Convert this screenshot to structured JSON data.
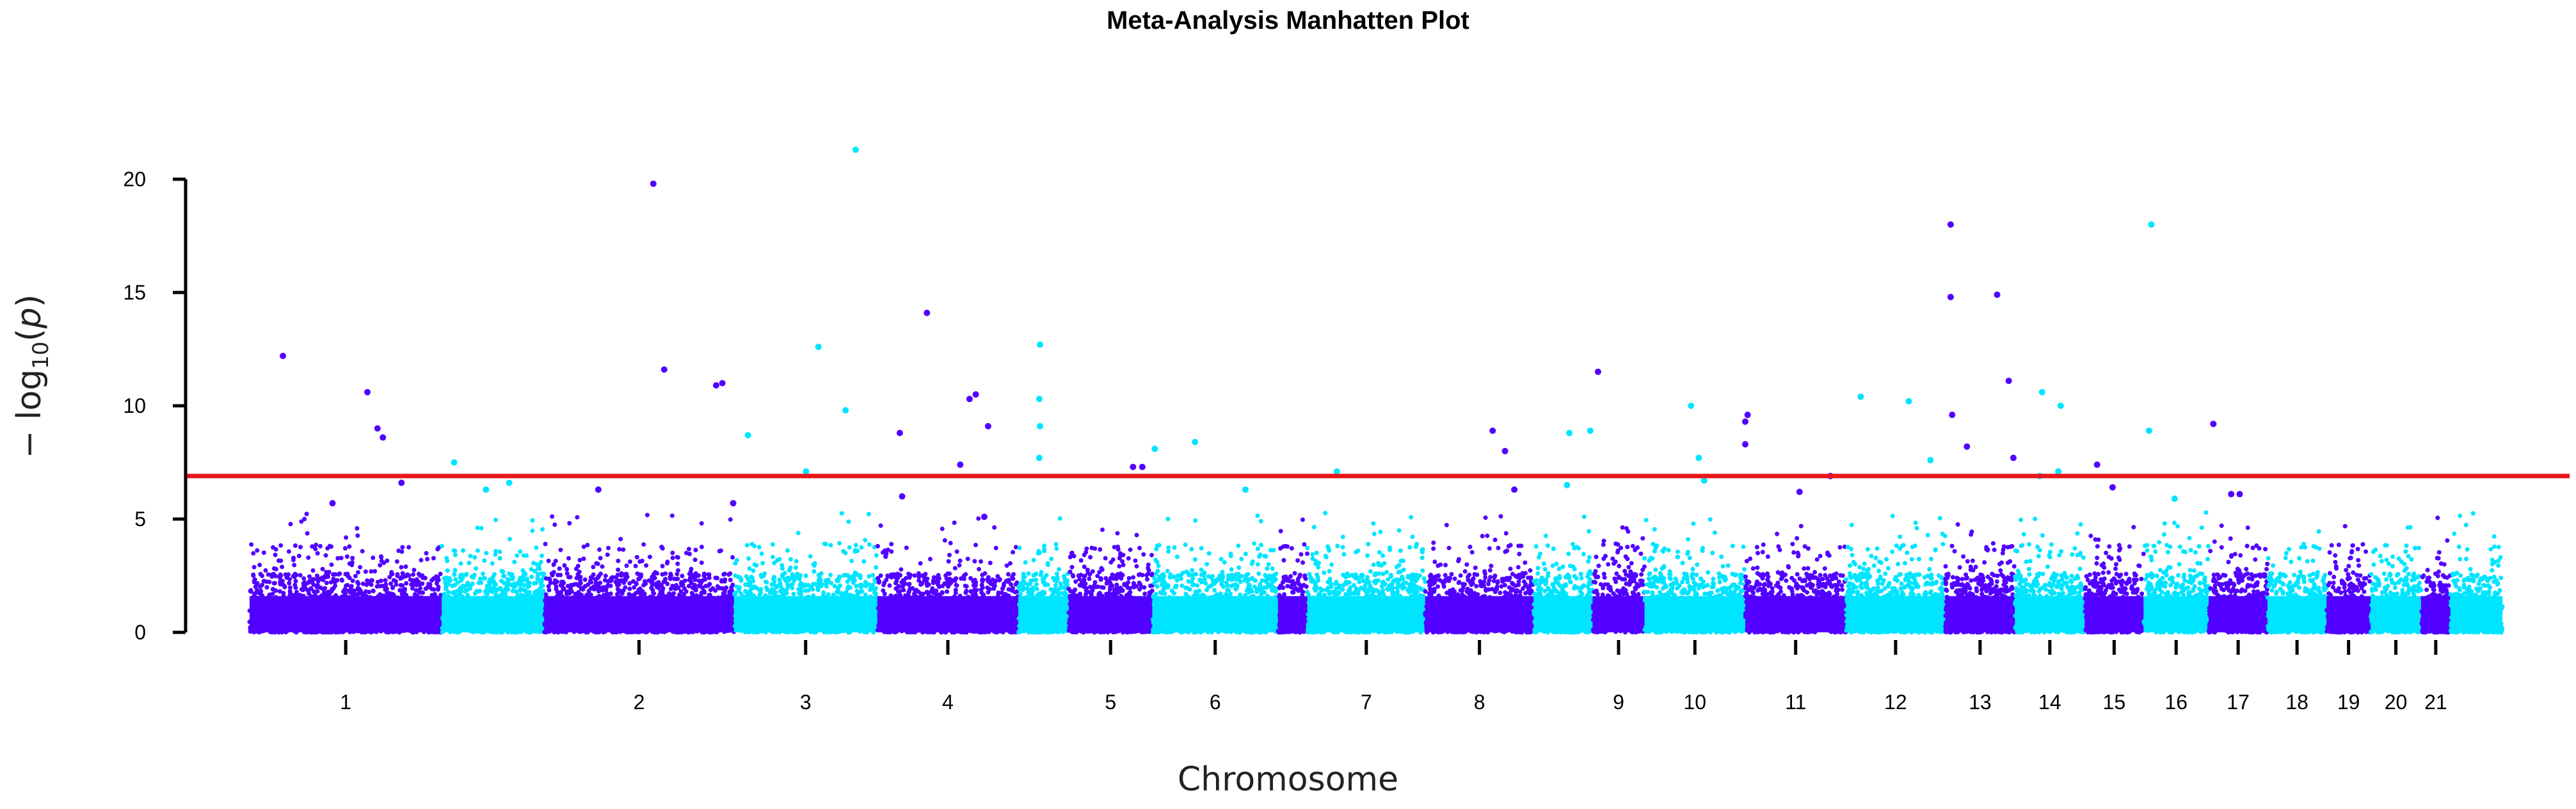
{
  "chart_data": {
    "type": "scatter",
    "title": "Meta-Analysis Manhatten Plot",
    "xlabel": "Chromosome",
    "ylabel": {
      "prefix": "− log",
      "subscript": "10",
      "open": "(",
      "var": "p",
      "close": ")"
    },
    "ylim": [
      0,
      21.5
    ],
    "yticks": [
      0,
      5,
      10,
      15,
      20
    ],
    "threshold": 6.9,
    "threshold_color": "#e8171d",
    "colors": [
      "#5200ff",
      "#00e5ff"
    ],
    "chromosomes": [
      {
        "label": "1",
        "start": 0,
        "end": 248
      },
      {
        "label": "",
        "start": 248,
        "end": 380
      },
      {
        "label": "2",
        "start": 380,
        "end": 625
      },
      {
        "label": "3",
        "start": 625,
        "end": 810
      },
      {
        "label": "4",
        "start": 810,
        "end": 992
      },
      {
        "label": "",
        "start": 992,
        "end": 1057
      },
      {
        "label": "5",
        "start": 1057,
        "end": 1165
      },
      {
        "label": "6",
        "start": 1165,
        "end": 1327
      },
      {
        "label": "",
        "start": 1327,
        "end": 1365
      },
      {
        "label": "7",
        "start": 1365,
        "end": 1517
      },
      {
        "label": "8",
        "start": 1517,
        "end": 1657
      },
      {
        "label": "",
        "start": 1657,
        "end": 1733
      },
      {
        "label": "9",
        "start": 1733,
        "end": 1800
      },
      {
        "label": "10",
        "start": 1800,
        "end": 1930
      },
      {
        "label": "11",
        "start": 1930,
        "end": 2060
      },
      {
        "label": "12",
        "start": 2060,
        "end": 2188
      },
      {
        "label": "13",
        "start": 2188,
        "end": 2278
      },
      {
        "label": "14",
        "start": 2278,
        "end": 2368
      },
      {
        "label": "15",
        "start": 2368,
        "end": 2444
      },
      {
        "label": "16",
        "start": 2444,
        "end": 2528
      },
      {
        "label": "17",
        "start": 2528,
        "end": 2604
      },
      {
        "label": "18",
        "start": 2604,
        "end": 2680
      },
      {
        "label": "19",
        "start": 2680,
        "end": 2737
      },
      {
        "label": "20",
        "start": 2737,
        "end": 2802
      },
      {
        "label": "21",
        "start": 2802,
        "end": 2840
      },
      {
        "label": "",
        "start": 2840,
        "end": 2907
      }
    ],
    "hits": [
      {
        "x": 43,
        "y": 12.2
      },
      {
        "x": 107,
        "y": 5.7
      },
      {
        "x": 152,
        "y": 10.6
      },
      {
        "x": 165,
        "y": 9.0
      },
      {
        "x": 172,
        "y": 8.6
      },
      {
        "x": 196,
        "y": 6.6
      },
      {
        "x": 264,
        "y": 7.5
      },
      {
        "x": 305,
        "y": 6.3
      },
      {
        "x": 335,
        "y": 6.6
      },
      {
        "x": 450,
        "y": 6.3
      },
      {
        "x": 521,
        "y": 19.8
      },
      {
        "x": 535,
        "y": 11.6
      },
      {
        "x": 602,
        "y": 10.9
      },
      {
        "x": 610,
        "y": 11.0
      },
      {
        "x": 624,
        "y": 5.7
      },
      {
        "x": 643,
        "y": 8.7
      },
      {
        "x": 718,
        "y": 7.1
      },
      {
        "x": 734,
        "y": 12.6
      },
      {
        "x": 769,
        "y": 9.8
      },
      {
        "x": 782,
        "y": 21.3
      },
      {
        "x": 839,
        "y": 8.8
      },
      {
        "x": 842,
        "y": 6.0
      },
      {
        "x": 874,
        "y": 14.1
      },
      {
        "x": 917,
        "y": 7.4
      },
      {
        "x": 929,
        "y": 10.3
      },
      {
        "x": 937,
        "y": 10.5
      },
      {
        "x": 953,
        "y": 9.1
      },
      {
        "x": 948,
        "y": 5.1
      },
      {
        "x": 1020,
        "y": 12.7
      },
      {
        "x": 1019,
        "y": 10.3
      },
      {
        "x": 1020,
        "y": 9.1
      },
      {
        "x": 1019,
        "y": 7.7
      },
      {
        "x": 1140,
        "y": 7.3
      },
      {
        "x": 1152,
        "y": 7.3
      },
      {
        "x": 1168,
        "y": 8.1
      },
      {
        "x": 1220,
        "y": 8.4
      },
      {
        "x": 1403,
        "y": 7.1
      },
      {
        "x": 1285,
        "y": 6.3
      },
      {
        "x": 1604,
        "y": 8.9
      },
      {
        "x": 1620,
        "y": 8.0
      },
      {
        "x": 1632,
        "y": 6.3
      },
      {
        "x": 1703,
        "y": 8.8
      },
      {
        "x": 1730,
        "y": 8.9
      },
      {
        "x": 1740,
        "y": 11.5
      },
      {
        "x": 1700,
        "y": 6.5
      },
      {
        "x": 1860,
        "y": 10.0
      },
      {
        "x": 1870,
        "y": 7.7
      },
      {
        "x": 1877,
        "y": 6.7
      },
      {
        "x": 1933,
        "y": 9.6
      },
      {
        "x": 1930,
        "y": 9.3
      },
      {
        "x": 1930,
        "y": 8.3
      },
      {
        "x": 2040,
        "y": 6.9
      },
      {
        "x": 2079,
        "y": 10.4
      },
      {
        "x": 2141,
        "y": 10.2
      },
      {
        "x": 2169,
        "y": 7.6
      },
      {
        "x": 2000,
        "y": 6.2
      },
      {
        "x": 2195,
        "y": 18.0
      },
      {
        "x": 2195,
        "y": 14.8
      },
      {
        "x": 2197,
        "y": 9.6
      },
      {
        "x": 2216,
        "y": 8.2
      },
      {
        "x": 2255,
        "y": 14.9
      },
      {
        "x": 2270,
        "y": 11.1
      },
      {
        "x": 2276,
        "y": 7.7
      },
      {
        "x": 2313,
        "y": 10.6
      },
      {
        "x": 2310,
        "y": 6.9
      },
      {
        "x": 2337,
        "y": 10.0
      },
      {
        "x": 2334,
        "y": 7.1
      },
      {
        "x": 2384,
        "y": 7.4
      },
      {
        "x": 2404,
        "y": 6.4
      },
      {
        "x": 2454,
        "y": 18.0
      },
      {
        "x": 2451,
        "y": 8.9
      },
      {
        "x": 2484,
        "y": 5.9
      },
      {
        "x": 2534,
        "y": 9.2
      },
      {
        "x": 2557,
        "y": 6.1
      },
      {
        "x": 2568,
        "y": 6.1
      }
    ]
  }
}
